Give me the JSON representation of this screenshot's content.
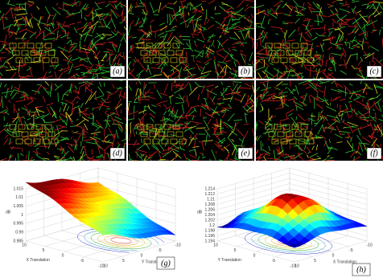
{
  "panels": [
    {
      "label": "(a)"
    },
    {
      "label": "(b)"
    },
    {
      "label": "(c)"
    },
    {
      "label": "(d)"
    },
    {
      "label": "(e)"
    },
    {
      "label": "(f)"
    }
  ],
  "plots": [
    {
      "label": "(g)",
      "z_label": "dB",
      "z_ticks": [
        "1.015",
        "1.01",
        "1.005",
        "1",
        "0.995",
        "0.99",
        "0.985"
      ],
      "x_label": "X Translation",
      "x_ticks": [
        "10",
        "5",
        "0",
        "-5",
        "-10"
      ],
      "y_label": "Y Translation",
      "y_ticks": [
        "10",
        "5",
        "0",
        "-5",
        "-10"
      ]
    },
    {
      "label": "(h)",
      "z_label": "dB",
      "z_ticks": [
        "1.214",
        "1.212",
        "1.21",
        "1.208",
        "1.206",
        "1.204",
        "1.202",
        "1.2",
        "1.198",
        "1.196",
        "1.194"
      ],
      "x_label": "Y Translation",
      "x_ticks": [
        "10",
        "5",
        "0",
        "-5",
        "-10"
      ],
      "y_label": "X Translation",
      "y_ticks": [
        "10",
        "5",
        "0",
        "-5",
        "-10"
      ]
    }
  ]
}
